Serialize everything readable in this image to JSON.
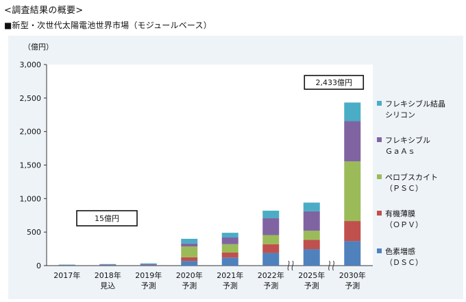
{
  "header": {
    "summary_title": "<調査結果の概要>",
    "chart_title": "■新型・次世代太陽電池世界市場（モジュールベース）"
  },
  "chart_data": {
    "type": "bar",
    "stacked": true,
    "yunit": "（億円）",
    "ylim": [
      0,
      3000
    ],
    "yticks": [
      0,
      500,
      1000,
      1500,
      2000,
      2500,
      3000
    ],
    "ytick_labels": [
      "0",
      "500",
      "1,000",
      "1,500",
      "2,000",
      "2,500",
      "3,000"
    ],
    "grid": false,
    "legend_position": "right",
    "categories": [
      [
        "2017年"
      ],
      [
        "2018年",
        "見込"
      ],
      [
        "2019年",
        "予測"
      ],
      [
        "2020年",
        "予測"
      ],
      [
        "2021年",
        "予測"
      ],
      [
        "2022年",
        "予測"
      ],
      [
        "2025年",
        "予測"
      ],
      [
        "2030年",
        "予測"
      ]
    ],
    "series": [
      {
        "name": [
          "色素増感",
          "（ＤＳＣ）"
        ],
        "color": "#4f81bd",
        "values": [
          8,
          10,
          12,
          70,
          120,
          190,
          245,
          365
        ]
      },
      {
        "name": [
          "有機薄膜",
          "（ＯＰＶ）"
        ],
        "color": "#c0504d",
        "values": [
          1,
          2,
          4,
          55,
          75,
          130,
          140,
          300
        ]
      },
      {
        "name": [
          "ペロブスカイト",
          "（ＰＳＣ）"
        ],
        "color": "#9bbb59",
        "values": [
          0,
          0,
          0,
          160,
          125,
          135,
          135,
          890
        ]
      },
      {
        "name": [
          "フレキシブル",
          "ＧａＡｓ"
        ],
        "color": "#8064a2",
        "values": [
          3,
          4,
          6,
          45,
          100,
          255,
          290,
          600
        ]
      },
      {
        "name": [
          "フレキシブル結晶",
          "シリコン"
        ],
        "color": "#4bacc6",
        "values": [
          3,
          7,
          12,
          70,
          70,
          110,
          130,
          278
        ]
      }
    ],
    "annotations": [
      {
        "text": "15億円",
        "category_index": 1
      },
      {
        "text": "2,433億円",
        "category_index": 7
      }
    ],
    "axis_breaks_before": [
      6,
      7
    ]
  }
}
